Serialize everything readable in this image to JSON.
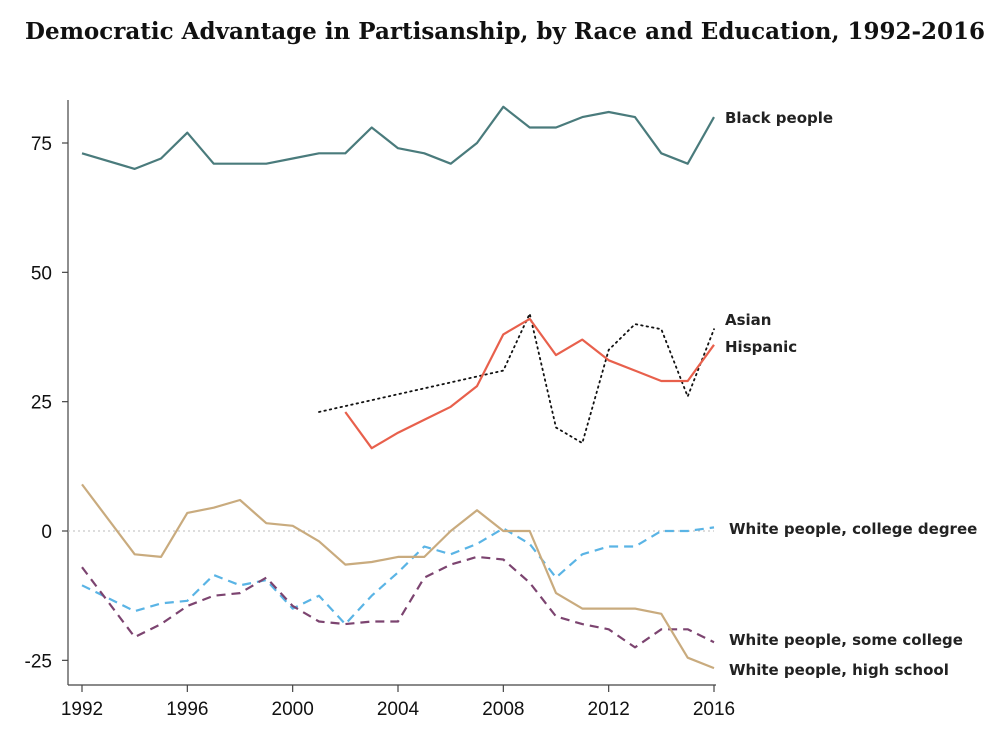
{
  "chart_data": {
    "type": "line",
    "title": "Democratic Advantage in Partisanship, by Race and Education, 1992-2016",
    "xlabel": "",
    "ylabel": "",
    "xlim": [
      1992,
      2016
    ],
    "ylim": [
      -25,
      80
    ],
    "x_ticks": [
      "1992",
      "1996",
      "2000",
      "2004",
      "2008",
      "2012",
      "2016"
    ],
    "y_ticks": [
      "75",
      "50",
      "25",
      "0",
      "-25"
    ],
    "grid": false,
    "zero_line": true,
    "series": [
      {
        "name": "Black people",
        "color": "#4a7b7c",
        "style": "solid",
        "x": [
          1992,
          1994,
          1995,
          1996,
          1997,
          1998,
          1999,
          2000,
          2001,
          2002,
          2003,
          2004,
          2005,
          2006,
          2007,
          2008,
          2009,
          2010,
          2011,
          2012,
          2013,
          2014,
          2015,
          2016
        ],
        "y": [
          73,
          70,
          72,
          77,
          71,
          71,
          71,
          72,
          73,
          73,
          78,
          74,
          73,
          71,
          75,
          82,
          78,
          78,
          80,
          81,
          80,
          73,
          71,
          80
        ]
      },
      {
        "name": "Asian",
        "color": "#111111",
        "style": "dotted",
        "x": [
          2001,
          2008,
          2009,
          2010,
          2011,
          2012,
          2013,
          2014,
          2015,
          2016
        ],
        "y": [
          23,
          31,
          42,
          20,
          17,
          35,
          40,
          39,
          26,
          39
        ]
      },
      {
        "name": "Hispanic",
        "color": "#e8604c",
        "style": "solid",
        "x": [
          2002,
          2003,
          2004,
          2005,
          2006,
          2007,
          2008,
          2009,
          2010,
          2011,
          2012,
          2013,
          2014,
          2015,
          2016
        ],
        "y": [
          23,
          16,
          19,
          21.5,
          24,
          28,
          38,
          41,
          34,
          37,
          33,
          31,
          29,
          29,
          36
        ]
      },
      {
        "name": "White people, college degree",
        "color": "#5ab4e5",
        "style": "dashed",
        "x": [
          1992,
          1994,
          1995,
          1996,
          1997,
          1998,
          1999,
          2000,
          2001,
          2002,
          2003,
          2004,
          2005,
          2006,
          2007,
          2008,
          2009,
          2010,
          2011,
          2012,
          2013,
          2014,
          2015,
          2016
        ],
        "y": [
          -10.5,
          -15.5,
          -14,
          -13.5,
          -8.5,
          -10.5,
          -9.5,
          -15,
          -12.5,
          -18,
          -12.5,
          -8,
          -3,
          -4.5,
          -2.5,
          0.5,
          -2.5,
          -9,
          -4.5,
          -3,
          -3,
          0,
          0,
          0.7
        ]
      },
      {
        "name": "White people, some college",
        "color": "#7c4470",
        "style": "dashed",
        "x": [
          1992,
          1994,
          1995,
          1996,
          1997,
          1998,
          1999,
          2000,
          2001,
          2002,
          2003,
          2004,
          2005,
          2006,
          2007,
          2008,
          2009,
          2010,
          2011,
          2012,
          2013,
          2014,
          2015,
          2016
        ],
        "y": [
          -7,
          -20.5,
          -18,
          -14.5,
          -12.5,
          -12,
          -9,
          -14.5,
          -17.5,
          -18,
          -17.5,
          -17.5,
          -9,
          -6.5,
          -5,
          -5.5,
          -10,
          -16.5,
          -18,
          -19,
          -22.5,
          -19,
          -19,
          -21.5
        ]
      },
      {
        "name": "White people, high school",
        "color": "#c9ab7e",
        "style": "solid",
        "x": [
          1992,
          1994,
          1995,
          1996,
          1997,
          1998,
          1999,
          2000,
          2001,
          2002,
          2003,
          2004,
          2005,
          2006,
          2007,
          2008,
          2009,
          2010,
          2011,
          2012,
          2013,
          2014,
          2015,
          2016
        ],
        "y": [
          9,
          -4.5,
          -5,
          3.5,
          4.5,
          6,
          1.5,
          1,
          -2,
          -6.5,
          -6,
          -5,
          -5,
          0,
          4,
          0,
          0,
          -12,
          -15,
          -15,
          -15,
          -16,
          -24.5,
          -26.5
        ]
      }
    ],
    "annotations": [
      {
        "text": "Black people",
        "series": "Black people"
      },
      {
        "text": "Asian",
        "series": "Asian"
      },
      {
        "text": "Hispanic",
        "series": "Hispanic"
      },
      {
        "text": "White people, college degree",
        "series": "White people, college degree"
      },
      {
        "text": "White people, some college",
        "series": "White people, some college"
      },
      {
        "text": "White people, high school",
        "series": "White people, high school"
      }
    ]
  }
}
